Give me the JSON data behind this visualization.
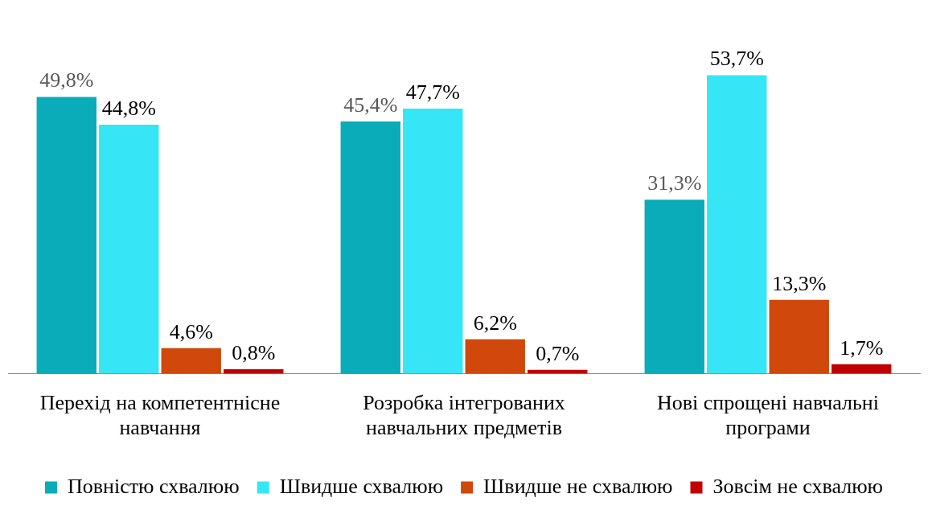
{
  "chart_data": {
    "type": "bar",
    "categories": [
      "Перехід на компетентнісне навчання",
      "Розробка інтегрованих навчальних предметів",
      "Нові спрощені навчальні програми"
    ],
    "series": [
      {
        "name": "Повністю схвалюю",
        "color": "#0aacb9",
        "values": [
          49.8,
          45.4,
          31.3
        ],
        "value_labels": [
          "49,8%",
          "45,4%",
          "31,3%"
        ]
      },
      {
        "name": "Швидше схвалюю",
        "color": "#36e6f6",
        "values": [
          44.8,
          47.7,
          53.7
        ],
        "value_labels": [
          "44,8%",
          "47,7%",
          "53,7%"
        ]
      },
      {
        "name": "Швидше не схвалюю",
        "color": "#d0480b",
        "values": [
          4.6,
          6.2,
          13.3
        ],
        "value_labels": [
          "4,6%",
          "6,2%",
          "13,3%"
        ]
      },
      {
        "name": "Зовсім не схвалюю",
        "color": "#c00000",
        "values": [
          0.8,
          0.7,
          1.7
        ],
        "value_labels": [
          "0,8%",
          "0,7%",
          "1,7%"
        ]
      }
    ],
    "legend": "bottom",
    "grid": false
  }
}
